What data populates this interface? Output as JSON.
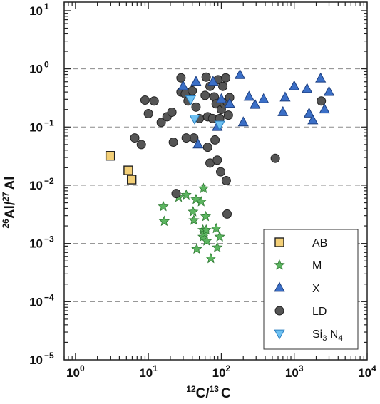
{
  "chart_data": {
    "type": "scatter",
    "x_scale": "log",
    "y_scale": "log",
    "xlim": [
      0.7,
      10000
    ],
    "ylim": [
      1e-05,
      14
    ],
    "xlabel": {
      "base": "C/",
      "sup1": "12",
      "sup2": "13",
      "end": "C"
    },
    "ylabel": {
      "sup1": "26",
      "mid": "Al/",
      "sup2": "27",
      "end": "Al"
    },
    "x_ticks": [
      {
        "value": 1,
        "base": "10",
        "exp": "0"
      },
      {
        "value": 10,
        "base": "10",
        "exp": "1"
      },
      {
        "value": 100,
        "base": "10",
        "exp": "2"
      },
      {
        "value": 1000,
        "base": "10",
        "exp": "3"
      },
      {
        "value": 10000,
        "base": "10",
        "exp": "4"
      }
    ],
    "y_ticks": [
      {
        "value": 1e-05,
        "base": "10",
        "exp": "−5"
      },
      {
        "value": 0.0001,
        "base": "10",
        "exp": "−4"
      },
      {
        "value": 0.001,
        "base": "10",
        "exp": "−3"
      },
      {
        "value": 0.01,
        "base": "10",
        "exp": "−2"
      },
      {
        "value": 0.1,
        "base": "10",
        "exp": "−1"
      },
      {
        "value": 1,
        "base": "10",
        "exp": "0"
      },
      {
        "value": 10,
        "base": "10",
        "exp": "1"
      }
    ],
    "y_gridlines": [
      1e-05,
      0.0001,
      0.001,
      0.01,
      0.1,
      1
    ],
    "legend_position": "bottom-right",
    "series": [
      {
        "name": "AB",
        "label": {
          "text": "AB"
        },
        "marker": "square",
        "color": "#f3cf77",
        "edge": "#222222",
        "points": [
          [
            3.0,
            0.032
          ],
          [
            5.3,
            0.018
          ],
          [
            5.9,
            0.0125
          ]
        ]
      },
      {
        "name": "M",
        "label": {
          "text": "M"
        },
        "marker": "star",
        "color": "#5cb560",
        "edge": "#2f7a33",
        "points": [
          [
            16,
            0.0043
          ],
          [
            16.5,
            0.0024
          ],
          [
            26,
            0.0062
          ],
          [
            33,
            0.0068
          ],
          [
            41,
            0.0035
          ],
          [
            42,
            0.0025
          ],
          [
            45,
            0.0057
          ],
          [
            53,
            0.0052
          ],
          [
            57,
            0.0088
          ],
          [
            56,
            0.0017
          ],
          [
            56,
            0.0013
          ],
          [
            59,
            0.0015
          ],
          [
            61,
            0.0029
          ],
          [
            62,
            0.0017
          ],
          [
            46,
            0.0008
          ],
          [
            63,
            0.0011
          ],
          [
            72,
            0.00055
          ],
          [
            88,
            0.00085
          ],
          [
            95,
            0.0013
          ],
          [
            85,
            0.0018
          ]
        ]
      },
      {
        "name": "X",
        "label": {
          "text": "X"
        },
        "marker": "triangle-up",
        "color": "#3b6fc7",
        "edge": "#1c3f80",
        "points": [
          [
            30,
            0.5
          ],
          [
            45,
            0.6
          ],
          [
            48,
            0.05
          ],
          [
            77,
            0.6
          ],
          [
            88,
            0.1
          ],
          [
            100,
            0.3
          ],
          [
            130,
            0.25
          ],
          [
            180,
            0.78
          ],
          [
            200,
            0.12
          ],
          [
            240,
            0.33
          ],
          [
            290,
            0.24
          ],
          [
            380,
            0.3
          ],
          [
            700,
            0.18
          ],
          [
            750,
            0.32
          ],
          [
            1000,
            0.5
          ],
          [
            1500,
            0.45
          ],
          [
            1600,
            0.17
          ],
          [
            1800,
            0.13
          ],
          [
            2300,
            0.68
          ],
          [
            2600,
            0.2
          ],
          [
            3000,
            0.4
          ]
        ]
      },
      {
        "name": "LD",
        "label": {
          "text": "LD"
        },
        "marker": "circle",
        "color": "#555555",
        "edge": "#222222",
        "points": [
          [
            9,
            0.29
          ],
          [
            10,
            0.17
          ],
          [
            12,
            0.28
          ],
          [
            15,
            0.12
          ],
          [
            18,
            0.15
          ],
          [
            21,
            0.18
          ],
          [
            28,
            0.4
          ],
          [
            32,
            0.37
          ],
          [
            35,
            0.28
          ],
          [
            40,
            0.42
          ],
          [
            45,
            0.22
          ],
          [
            50,
            0.14
          ],
          [
            60,
            0.35
          ],
          [
            62,
            0.72
          ],
          [
            65,
            0.15
          ],
          [
            70,
            0.5
          ],
          [
            76,
            0.14
          ],
          [
            80,
            0.33
          ],
          [
            85,
            0.25
          ],
          [
            90,
            0.65
          ],
          [
            95,
            0.14
          ],
          [
            100,
            0.2
          ],
          [
            105,
            0.5
          ],
          [
            110,
            0.25
          ],
          [
            115,
            0.7
          ],
          [
            120,
            0.27
          ],
          [
            125,
            0.16
          ],
          [
            130,
            0.32
          ],
          [
            28,
            0.7
          ],
          [
            42,
            0.065
          ],
          [
            65,
            0.045
          ],
          [
            70,
            0.024
          ],
          [
            82,
            0.06
          ],
          [
            88,
            0.027
          ],
          [
            98,
            0.017
          ],
          [
            117,
            0.012
          ],
          [
            6.5,
            0.065
          ],
          [
            8,
            0.05
          ],
          [
            22,
            0.055
          ],
          [
            33,
            0.065
          ],
          [
            24,
            0.0072
          ],
          [
            550,
            0.029
          ],
          [
            2350,
            0.28
          ],
          [
            120,
            0.0032
          ]
        ]
      },
      {
        "name": "Si3N4",
        "label": {
          "text": "Si",
          "sub": "3",
          "rest": " N",
          "sub2": "4"
        },
        "marker": "triangle-down",
        "color": "#6ec1f2",
        "edge": "#2a7fc0",
        "points": [
          [
            38,
            0.3
          ],
          [
            43,
            0.14
          ],
          [
            95,
            0.11
          ]
        ]
      }
    ]
  }
}
